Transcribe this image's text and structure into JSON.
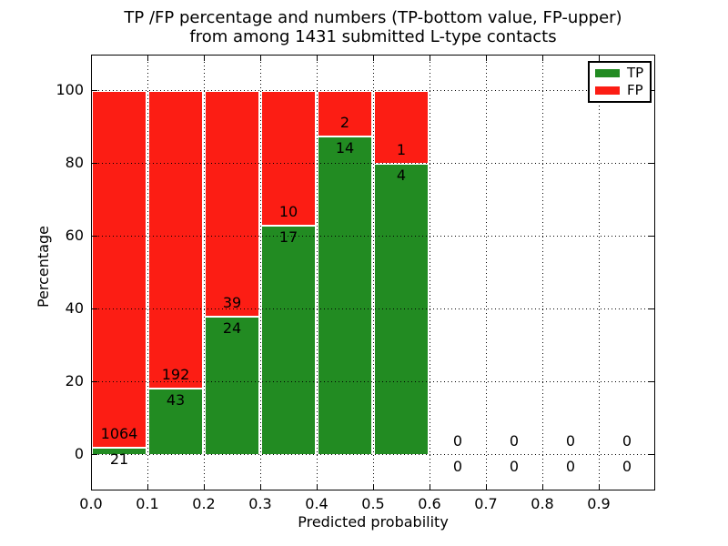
{
  "title": {
    "line1": "TP /FP percentage and numbers (TP-bottom value, FP-upper)",
    "line2": "from among 1431 submitted L-type contacts"
  },
  "axes": {
    "xlabel": "Predicted probability",
    "ylabel": "Percentage"
  },
  "legend": {
    "items": [
      {
        "label": "TP",
        "color": "#228b22"
      },
      {
        "label": "FP",
        "color": "#fc1d14"
      }
    ]
  },
  "colors": {
    "tp": "#228b22",
    "fp": "#fc1d14",
    "bar_edge": "#ffffff",
    "grid": "#000000",
    "text": "#000000",
    "background": "#ffffff"
  },
  "chart_data": {
    "type": "bar",
    "stacked": true,
    "title": "TP /FP percentage and numbers (TP-bottom value, FP-upper)\nfrom among 1431 submitted L-type contacts",
    "xlabel": "Predicted probability",
    "ylabel": "Percentage",
    "xlim": [
      0.0,
      1.0
    ],
    "ylim": [
      -10,
      110
    ],
    "bin_width": 0.1,
    "bin_starts": [
      0.0,
      0.1,
      0.2,
      0.3,
      0.4,
      0.5,
      0.6,
      0.7,
      0.8,
      0.9
    ],
    "xticks": [
      "0.0",
      "0.1",
      "0.2",
      "0.3",
      "0.4",
      "0.5",
      "0.6",
      "0.7",
      "0.8",
      "0.9"
    ],
    "yticks": [
      0,
      20,
      40,
      60,
      80,
      100
    ],
    "grid": "dotted",
    "legend_position": "upper right",
    "series": [
      {
        "name": "TP",
        "color": "#228b22",
        "counts": [
          21,
          43,
          24,
          17,
          14,
          4,
          0,
          0,
          0,
          0
        ]
      },
      {
        "name": "FP",
        "color": "#fc1d14",
        "counts": [
          1064,
          192,
          39,
          10,
          2,
          1,
          0,
          0,
          0,
          0
        ]
      }
    ],
    "tp_percent": [
      1.94,
      18.3,
      38.1,
      63.0,
      87.5,
      80.0,
      0,
      0,
      0,
      0
    ],
    "total_contacts": 1431
  }
}
